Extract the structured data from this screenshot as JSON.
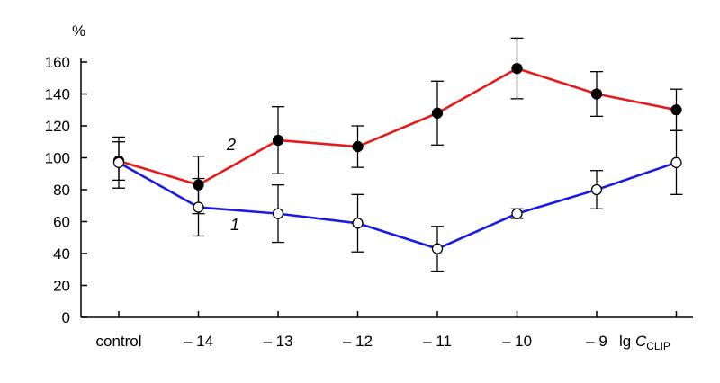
{
  "chart_data": {
    "type": "line",
    "title": "",
    "ylabel": "%",
    "xlabel": {
      "prefix": "lg ",
      "symbol": "C",
      "subscript": "CLIP"
    },
    "categories": [
      "control",
      "– 14",
      "– 13",
      "– 12",
      "– 11",
      "– 10",
      "– 9",
      ""
    ],
    "ylim": [
      0,
      160
    ],
    "yticks": [
      "0",
      "20",
      "40",
      "60",
      "80",
      "100",
      "120",
      "140",
      "160"
    ],
    "series": [
      {
        "name": "1",
        "color": "#1a1ae6",
        "marker": "open-circle",
        "values": [
          97,
          69,
          65,
          59,
          43,
          65,
          80,
          97
        ],
        "errors": [
          16,
          18,
          18,
          18,
          14,
          3,
          12,
          20
        ]
      },
      {
        "name": "2",
        "color": "#e61a1a",
        "marker": "filled-circle",
        "values": [
          98,
          83,
          111,
          107,
          128,
          156,
          140,
          130
        ],
        "errors": [
          12,
          18,
          21,
          13,
          20,
          19,
          14,
          13
        ]
      }
    ],
    "grid": false,
    "legend": "inline-labels"
  }
}
